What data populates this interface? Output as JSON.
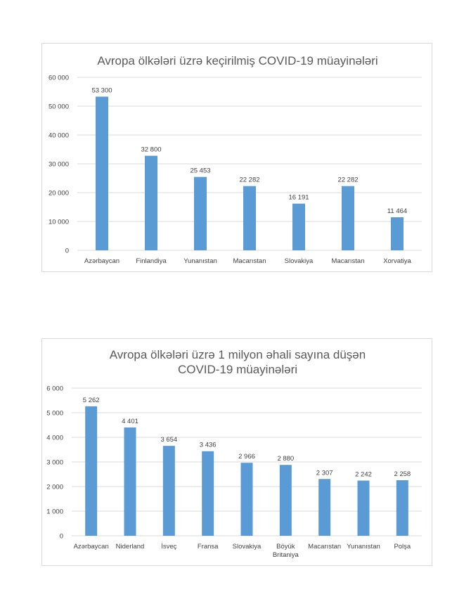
{
  "chart_data": [
    {
      "type": "bar",
      "title": "Avropa ölkələri üzrə keçirilmiş COVID-19 müayinələri",
      "categories": [
        "Azərbaycan",
        "Finlandiya",
        "Yunanıstan",
        "Macarıstan",
        "Slovakiya",
        "Macarıstan",
        "Xorvatiya"
      ],
      "values": [
        53300,
        32800,
        25453,
        22282,
        16191,
        22282,
        11464
      ],
      "value_labels": [
        "53 300",
        "32 800",
        "25 453",
        "22 282",
        "16 191",
        "22 282",
        "11 464"
      ],
      "ylim": [
        0,
        60000
      ],
      "yticks": [
        0,
        10000,
        20000,
        30000,
        40000,
        50000,
        60000
      ],
      "ytick_labels": [
        "0",
        "10 000",
        "20 000",
        "30 000",
        "40 000",
        "50 000",
        "60 000"
      ],
      "grid": true,
      "bar_color": "#5b9bd5"
    },
    {
      "type": "bar",
      "title": "Avropa ölkələri üzrə 1 milyon əhali sayına düşən",
      "subtitle": "COVID-19 müayinələri",
      "categories": [
        "Azərbaycan",
        "Niderland",
        "İsveç",
        "Fransa",
        "Slovakiya",
        "Böyük Britaniya",
        "Macarıstan",
        "Yunanıstan",
        "Polşa"
      ],
      "category_lines": [
        [
          "Azərbaycan"
        ],
        [
          "Niderland"
        ],
        [
          "İsveç"
        ],
        [
          "Fransa"
        ],
        [
          "Slovakiya"
        ],
        [
          "Böyük",
          "Britaniya"
        ],
        [
          "Macarıstan"
        ],
        [
          "Yunanıstan"
        ],
        [
          "Polşa"
        ]
      ],
      "values": [
        5262,
        4401,
        3654,
        3436,
        2966,
        2880,
        2307,
        2242,
        2258
      ],
      "value_labels": [
        "5 262",
        "4 401",
        "3 654",
        "3 436",
        "2 966",
        "2 880",
        "2 307",
        "2 242",
        "2 258"
      ],
      "ylim": [
        0,
        6000
      ],
      "yticks": [
        0,
        1000,
        2000,
        3000,
        4000,
        5000,
        6000
      ],
      "ytick_labels": [
        "0",
        "1 000",
        "2 000",
        "3 000",
        "4 000",
        "5 000",
        "6 000"
      ],
      "grid": true,
      "bar_color": "#5b9bd5"
    }
  ]
}
